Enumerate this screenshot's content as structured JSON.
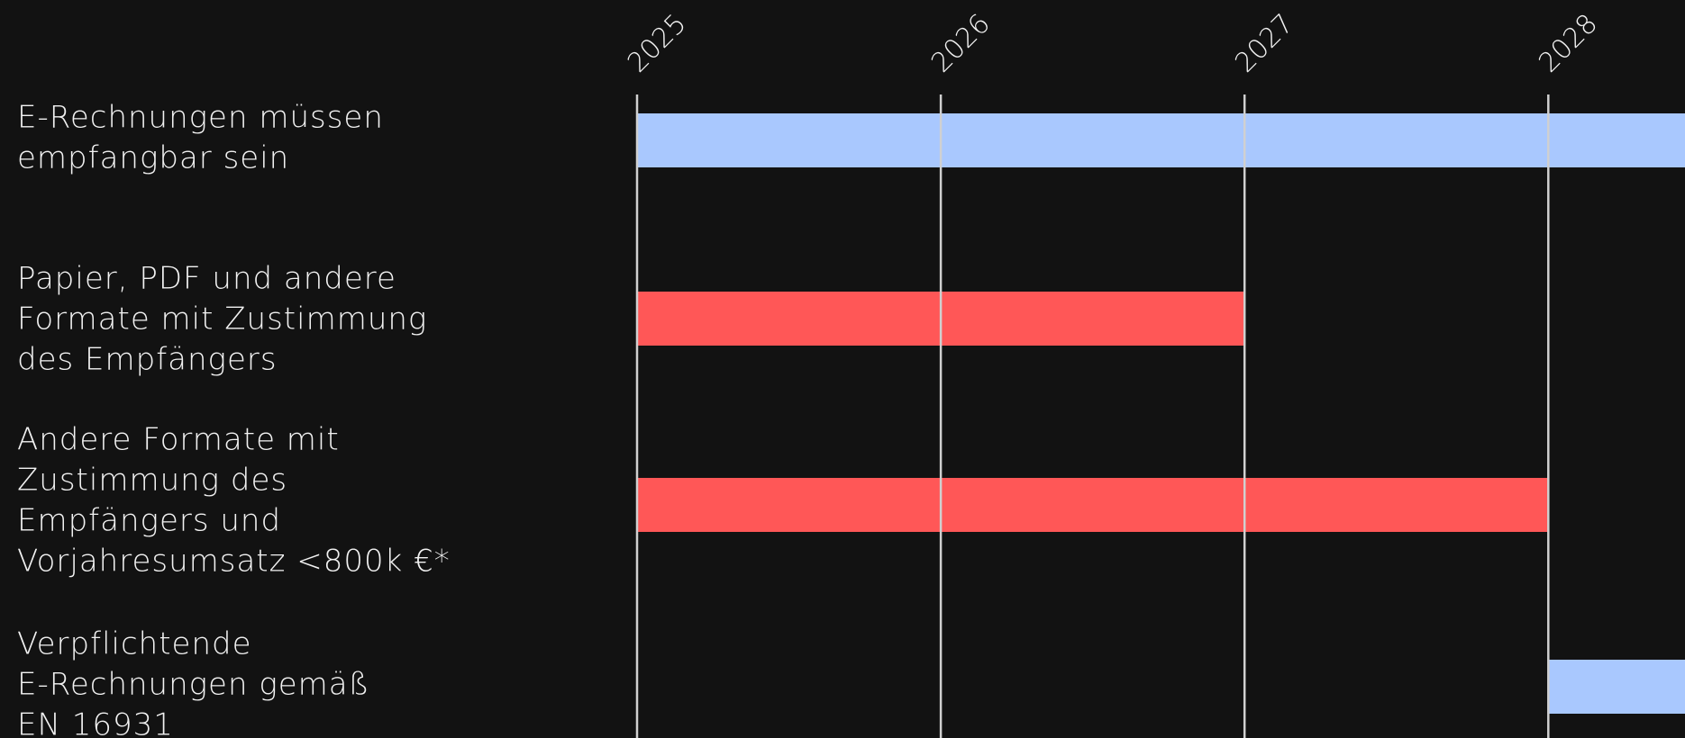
{
  "chart_data": {
    "type": "gantt",
    "categories": [
      [
        "E-Rechnungen müssen",
        "empfangbar sein"
      ],
      [
        "Papier, PDF und andere",
        "Formate mit Zustimmung",
        "des Empfängers"
      ],
      [
        "Andere Formate mit",
        "Zustimmung des",
        "Empfängers und",
        "Vorjahresumsatz <800k €*"
      ],
      [
        "Verpflichtende",
        "E-Rechnungen gemäß",
        "EN 16931"
      ]
    ],
    "start": [
      2025,
      2025,
      2025,
      2028
    ],
    "end": [
      2028.45,
      2027,
      2028,
      2028.45
    ],
    "colors": [
      "#a9c8fe",
      "#ff5757",
      "#ff5757",
      "#a9c8fe"
    ],
    "xlim": [
      2025,
      2028.45
    ],
    "xticks": [
      2025,
      2026,
      2027,
      2028
    ],
    "grid": true
  }
}
